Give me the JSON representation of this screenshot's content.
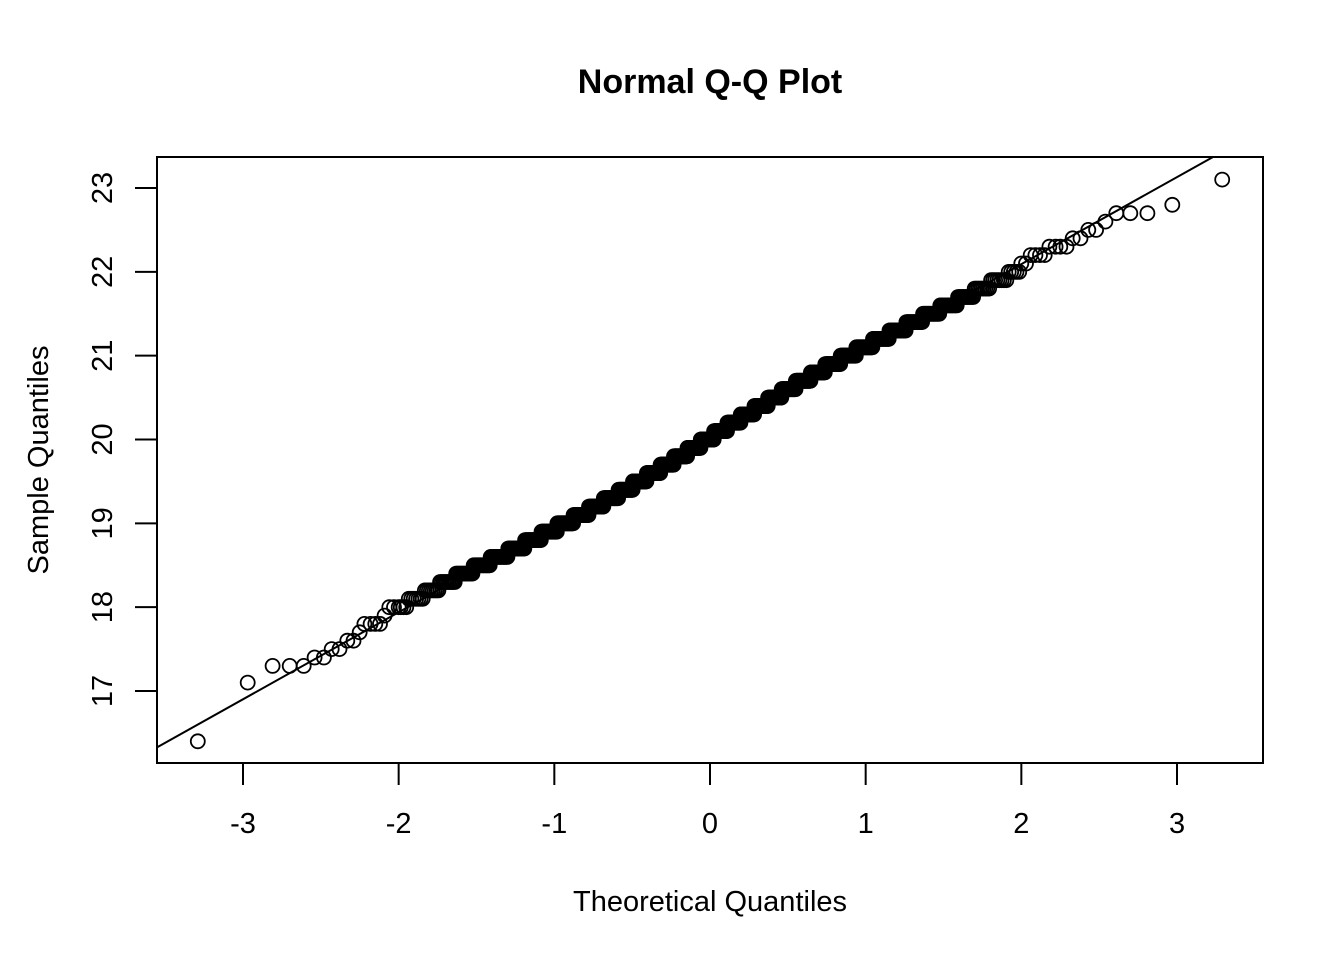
{
  "chart_data": {
    "type": "scatter",
    "title": "Normal Q-Q Plot",
    "xlabel": "Theoretical Quantiles",
    "ylabel": "Sample Quantiles",
    "xlim": [
      -3.55,
      3.55
    ],
    "ylim": [
      16.14,
      23.37
    ],
    "x_ticks": [
      -3,
      -2,
      -1,
      0,
      1,
      2,
      3
    ],
    "y_ticks": [
      17,
      18,
      19,
      20,
      21,
      22,
      23
    ],
    "n_points": 1000,
    "reference_line": {
      "intercept": 20.02,
      "slope": 1.04
    },
    "sample_rounding": 0.1,
    "lower_tail_points": [
      [
        -3.29,
        16.4
      ],
      [
        -2.97,
        17.1
      ],
      [
        -2.81,
        17.3
      ],
      [
        -2.7,
        17.3
      ],
      [
        -2.61,
        17.3
      ],
      [
        -2.54,
        17.4
      ],
      [
        -2.48,
        17.4
      ],
      [
        -2.43,
        17.5
      ],
      [
        -2.38,
        17.5
      ],
      [
        -2.33,
        17.6
      ],
      [
        -2.29,
        17.6
      ],
      [
        -2.25,
        17.7
      ],
      [
        -2.22,
        17.8
      ],
      [
        -2.18,
        17.8
      ],
      [
        -2.15,
        17.8
      ],
      [
        -2.12,
        17.8
      ],
      [
        -2.09,
        17.9
      ],
      [
        -2.06,
        18.0
      ],
      [
        -2.03,
        18.0
      ],
      [
        -2.0,
        18.0
      ]
    ],
    "upper_tail_points": [
      [
        3.29,
        23.1
      ],
      [
        2.97,
        22.8
      ],
      [
        2.81,
        22.7
      ],
      [
        2.7,
        22.7
      ],
      [
        2.61,
        22.7
      ],
      [
        2.54,
        22.6
      ],
      [
        2.48,
        22.5
      ],
      [
        2.43,
        22.5
      ],
      [
        2.38,
        22.4
      ],
      [
        2.33,
        22.4
      ],
      [
        2.29,
        22.3
      ],
      [
        2.25,
        22.3
      ],
      [
        2.22,
        22.3
      ],
      [
        2.18,
        22.3
      ],
      [
        2.15,
        22.2
      ],
      [
        2.12,
        22.2
      ],
      [
        2.09,
        22.2
      ],
      [
        2.06,
        22.2
      ],
      [
        2.03,
        22.1
      ],
      [
        2.0,
        22.1
      ]
    ]
  }
}
